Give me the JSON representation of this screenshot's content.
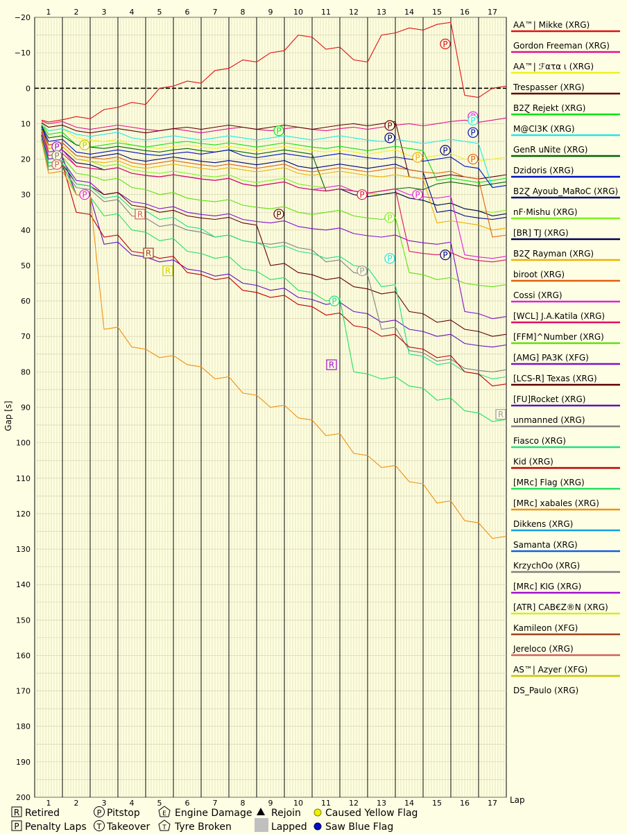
{
  "chart_data": {
    "type": "line",
    "title": "",
    "xlabel": "Lap",
    "ylabel": "Gap [s]",
    "x_ticks": [
      "1",
      "2",
      "3",
      "4",
      "5",
      "6",
      "7",
      "8",
      "9",
      "10",
      "11",
      "12",
      "13",
      "14",
      "15",
      "16",
      "17"
    ],
    "ylim": [
      -20,
      200
    ],
    "y_ticks": [
      "−20",
      "−10",
      "0",
      "10",
      "20",
      "30",
      "40",
      "50",
      "60",
      "70",
      "80",
      "90",
      "100",
      "110",
      "120",
      "130",
      "140",
      "150",
      "160",
      "170",
      "180",
      "190",
      "200"
    ],
    "grid": true,
    "legend_position": "right",
    "series": [
      {
        "name": "AA™| Mikke (XRG)",
        "color": "#e01010",
        "values": [
          9.5,
          8,
          6,
          4,
          0,
          -2,
          -5,
          -8,
          -10,
          -15,
          -11,
          -8,
          -15,
          -17,
          -18,
          2,
          0
        ]
      },
      {
        "name": "Gordon Freeman (XRG)",
        "color": "#e0108a",
        "values": [
          10,
          11,
          11,
          11,
          12,
          12,
          12,
          11,
          12,
          11,
          12,
          11,
          11,
          10,
          10,
          9,
          9
        ]
      },
      {
        "name": "AA™| ℱατα ι (XRG)",
        "color": "#f0f020",
        "values": [
          12,
          14,
          15,
          16,
          17,
          16,
          17,
          17,
          17,
          17,
          18,
          18,
          18,
          19,
          19,
          20,
          20
        ]
      },
      {
        "name": "Trespasser (XRG)",
        "color": "#600000",
        "values": [
          11,
          12,
          12,
          12,
          12,
          11,
          11,
          11,
          11,
          11,
          11,
          10,
          10,
          25,
          25,
          25,
          25
        ]
      },
      {
        "name": "B2Ɀ Rejekt (XRG)",
        "color": "#10e010",
        "values": [
          13,
          16,
          16,
          16,
          16,
          15,
          16,
          16,
          16,
          16,
          17,
          17,
          17,
          17,
          26,
          26,
          26
        ]
      },
      {
        "name": "M@Cl3K (XRG)",
        "color": "#20e8e8",
        "values": [
          12,
          13,
          13,
          14,
          14,
          14,
          14,
          14,
          14,
          14,
          14,
          14,
          15,
          15,
          15,
          15,
          28
        ]
      },
      {
        "name": "GenR uNite (XRG)",
        "color": "#006400",
        "values": [
          14,
          16,
          17,
          17,
          18,
          17,
          18,
          18,
          18,
          18,
          29,
          29,
          29,
          28,
          27,
          27,
          27
        ]
      },
      {
        "name": "Dzidoris (XRG)",
        "color": "#0010c0",
        "values": [
          15,
          18,
          18,
          18,
          19,
          18,
          18,
          19,
          19,
          19,
          19,
          19,
          20,
          20,
          20,
          22,
          28
        ]
      },
      {
        "name": "B2Ɀ Ayoub_MaRoC (XRG)",
        "color": "#000080",
        "values": [
          16,
          19,
          19,
          20,
          20,
          20,
          21,
          21,
          21,
          22,
          22,
          22,
          22,
          23,
          35,
          36,
          37
        ]
      },
      {
        "name": "nF·Mishu (XRG)",
        "color": "#80f020",
        "values": [
          17,
          20,
          22,
          23,
          24,
          24,
          25,
          26,
          26,
          27,
          28,
          29,
          30,
          31,
          33,
          34,
          35
        ]
      },
      {
        "name": "[BR] TJ (XRG)",
        "color": "#000050",
        "values": [
          18,
          21,
          23,
          24,
          25,
          25,
          26,
          27,
          27,
          28,
          29,
          30,
          30,
          31,
          33,
          34,
          36
        ]
      },
      {
        "name": "B2Ɀ Rayman (XRG)",
        "color": "#f0b000",
        "values": [
          17,
          20,
          21,
          22,
          22,
          22,
          23,
          23,
          23,
          24,
          24,
          24,
          25,
          25,
          38,
          38,
          40
        ]
      },
      {
        "name": "biroot (XRG)",
        "color": "#e06010",
        "values": [
          16,
          19,
          20,
          21,
          21,
          21,
          22,
          22,
          22,
          23,
          23,
          23,
          23,
          23,
          24,
          25,
          42
        ]
      },
      {
        "name": "Cossi (XRG)",
        "color": "#e020e0",
        "values": [
          18,
          22,
          23,
          24,
          25,
          25,
          26,
          27,
          27,
          28,
          28,
          29,
          29,
          30,
          31,
          47,
          48
        ]
      },
      {
        "name": "[WCL] J.A.Katila (XRG)",
        "color": "#e01060",
        "values": [
          19,
          22,
          23,
          24,
          25,
          25,
          26,
          27,
          27,
          28,
          29,
          29,
          29,
          46,
          47,
          48,
          49
        ]
      },
      {
        "name": "[FFM]^Number (XRG)",
        "color": "#60e010",
        "values": [
          20,
          24,
          26,
          28,
          30,
          31,
          32,
          33,
          34,
          35,
          35,
          36,
          37,
          52,
          54,
          55,
          56
        ]
      },
      {
        "name": "[AMG] PA3K (XFG)",
        "color": "#8010d0",
        "values": [
          21,
          26,
          30,
          32,
          34,
          35,
          36,
          37,
          38,
          39,
          40,
          41,
          42,
          43,
          44,
          63,
          65
        ]
      },
      {
        "name": "[LCS-R] Texas (XRG)",
        "color": "#600000",
        "values": [
          22,
          27,
          30,
          33,
          35,
          36,
          37,
          38,
          50,
          52,
          54,
          56,
          58,
          63,
          66,
          68,
          70
        ]
      },
      {
        "name": "[FU]Rocket (XRG)",
        "color": "#6010c0",
        "values": [
          20,
          30,
          44,
          47,
          49,
          51,
          53,
          55,
          57,
          59,
          61,
          63,
          66,
          68,
          70,
          72,
          73
        ]
      },
      {
        "name": "unmanned (XRG)",
        "color": "#808080",
        "values": [
          23,
          28,
          32,
          36,
          39,
          40,
          42,
          43,
          44,
          45,
          49,
          52,
          68,
          74,
          77,
          79,
          80
        ]
      },
      {
        "name": "Fiasco (XRG)",
        "color": "#20e080",
        "values": [
          21,
          27,
          31,
          34,
          37,
          39,
          42,
          43,
          45,
          46,
          48,
          50,
          56,
          75,
          78,
          80,
          82
        ]
      },
      {
        "name": "Kid (XRG)",
        "color": "#c00000",
        "values": [
          22,
          35,
          42,
          46,
          48,
          52,
          54,
          57,
          59,
          61,
          64,
          67,
          70,
          73,
          76,
          80,
          84
        ]
      },
      {
        "name": "[MRc] Flag (XRG)",
        "color": "#20e060",
        "values": [
          22,
          30,
          36,
          40,
          43,
          46,
          48,
          51,
          54,
          57,
          60,
          80,
          82,
          84,
          88,
          91,
          94
        ]
      },
      {
        "name": "[MRc] xabales (XRG)",
        "color": "#f09010",
        "values": [
          24,
          30,
          68,
          73,
          76,
          78,
          82,
          86,
          90,
          93,
          98,
          103,
          107,
          111,
          117,
          122,
          127
        ]
      }
    ],
    "legend_extra": [
      {
        "name": "Dikkens (XRG)",
        "color": "#10a0e0"
      },
      {
        "name": "Samanta (XRG)",
        "color": "#1060e0"
      },
      {
        "name": "KrzychOo (XRG)",
        "color": "#808080"
      },
      {
        "name": "[MRc] KIG (XRG)",
        "color": "#a010d0"
      },
      {
        "name": "[ATR] CAB€Z®N (XRG)",
        "color": "#d0f020"
      },
      {
        "name": "Kamileon (XFG)",
        "color": "#a04020"
      },
      {
        "name": "Jereloco (XRG)",
        "color": "#d06060"
      },
      {
        "name": "AS™| Azyer (XFG)",
        "color": "#c8c800"
      },
      {
        "name": "DS_Paulo (XRG)",
        "color": ""
      }
    ],
    "annotations": [
      {
        "symbol": "P",
        "lap": 15.3,
        "gap": -12.5,
        "color": "#e01010"
      },
      {
        "symbol": "P",
        "lap": 9.3,
        "gap": 12,
        "color": "#10e010"
      },
      {
        "symbol": "P",
        "lap": 13.3,
        "gap": 10.5,
        "color": "#600000"
      },
      {
        "symbol": "P",
        "lap": 13.3,
        "gap": 14,
        "color": "#000080"
      },
      {
        "symbol": "P",
        "lap": 14.3,
        "gap": 19.5,
        "color": "#f0b000"
      },
      {
        "symbol": "P",
        "lap": 15.3,
        "gap": 17.5,
        "color": "#000080"
      },
      {
        "symbol": "P",
        "lap": 16.3,
        "gap": 8,
        "color": "#e020e0"
      },
      {
        "symbol": "P",
        "lap": 16.3,
        "gap": 9,
        "color": "#20e8e8"
      },
      {
        "symbol": "P",
        "lap": 16.3,
        "gap": 12.5,
        "color": "#0010c0"
      },
      {
        "symbol": "P",
        "lap": 16.3,
        "gap": 20,
        "color": "#e06010"
      },
      {
        "symbol": "P",
        "lap": 1.3,
        "gap": 16.5,
        "color": "#a010d0"
      },
      {
        "symbol": "P",
        "lap": 1.3,
        "gap": 19,
        "color": "#808080"
      },
      {
        "symbol": "P",
        "lap": 1.3,
        "gap": 21.5,
        "color": "#d06060"
      },
      {
        "symbol": "P",
        "lap": 2.3,
        "gap": 16,
        "color": "#c8c800"
      },
      {
        "symbol": "P",
        "lap": 2.3,
        "gap": 30,
        "color": "#e020e0"
      },
      {
        "symbol": "P",
        "lap": 9.3,
        "gap": 35.5,
        "color": "#600000"
      },
      {
        "symbol": "P",
        "lap": 12.3,
        "gap": 30,
        "color": "#e01060"
      },
      {
        "symbol": "P",
        "lap": 13.3,
        "gap": 36.5,
        "color": "#80f020"
      },
      {
        "symbol": "P",
        "lap": 14.3,
        "gap": 30,
        "color": "#e020e0"
      },
      {
        "symbol": "P",
        "lap": 13.3,
        "gap": 48,
        "color": "#20e8e8"
      },
      {
        "symbol": "P",
        "lap": 15.3,
        "gap": 47,
        "color": "#000080"
      },
      {
        "symbol": "P",
        "lap": 12.3,
        "gap": 51.5,
        "color": "#a0a0a0"
      },
      {
        "symbol": "P",
        "lap": 11.3,
        "gap": 60,
        "color": "#20e080"
      },
      {
        "symbol": "R",
        "lap": 4.3,
        "gap": 35.5,
        "color": "#d06060"
      },
      {
        "symbol": "R",
        "lap": 4.6,
        "gap": 46.5,
        "color": "#a04020"
      },
      {
        "symbol": "R",
        "lap": 5.3,
        "gap": 51.5,
        "color": "#d0d000"
      },
      {
        "symbol": "R",
        "lap": 11.2,
        "gap": 78,
        "color": "#a010d0"
      },
      {
        "symbol": "R",
        "lap": 17.3,
        "gap": 92,
        "color": "#a0a0a0"
      }
    ]
  },
  "key": {
    "retired": "Retired",
    "penalty_laps": "Penalty Laps",
    "pitstop": "Pitstop",
    "takeover": "Takeover",
    "engine_damage": "Engine Damage",
    "tyre_broken": "Tyre Broken",
    "rejoin": "Rejoin",
    "lapped": "Lapped",
    "caused_yellow": "Caused Yellow Flag",
    "saw_blue": "Saw Blue Flag"
  }
}
